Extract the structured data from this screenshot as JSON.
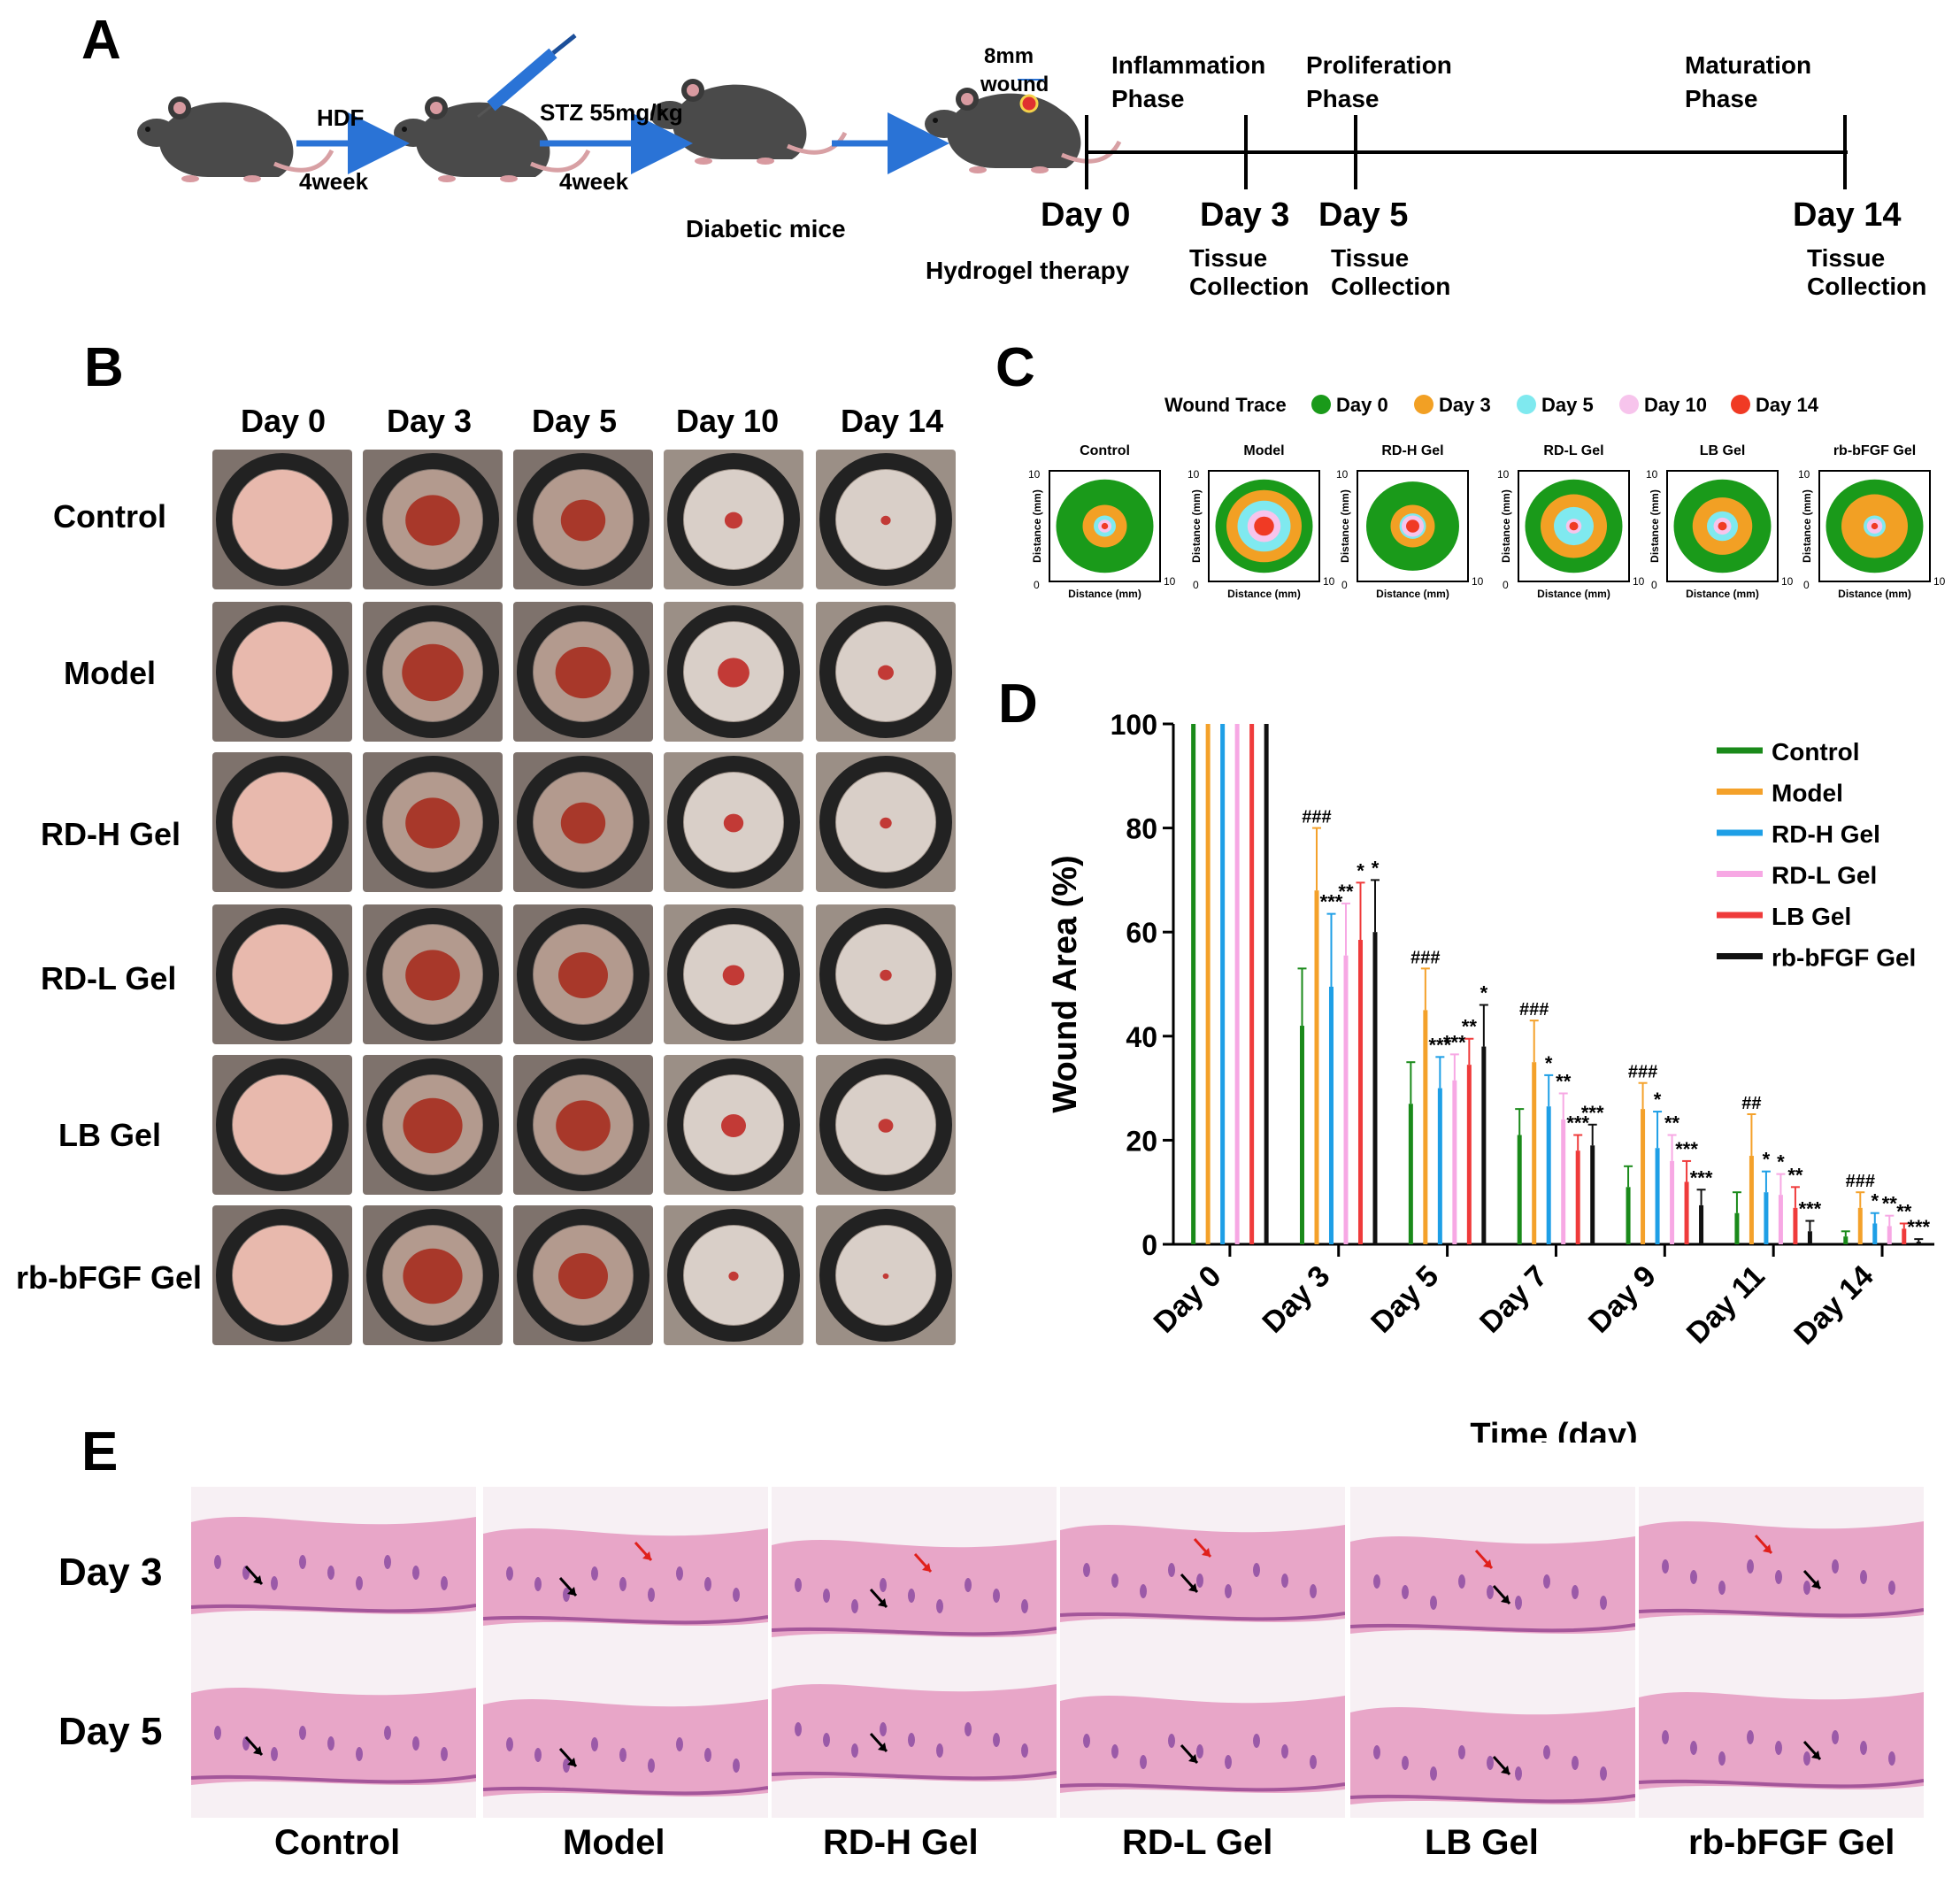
{
  "panel_labels": {
    "a": "A",
    "b": "B",
    "c": "C",
    "d": "D",
    "e": "E"
  },
  "panel_a": {
    "step1_top": "HDF",
    "step1_bottom": "4week",
    "step2_top": "STZ 55mg/kg",
    "step2_bottom": "4week",
    "diabetic": "Diabetic mice",
    "wound_line1": "8mm",
    "wound_line2": "wound",
    "phase_inflam_1": "Inflammation",
    "phase_inflam_2": "Phase",
    "phase_prolif_1": "Proliferation",
    "phase_prolif_2": "Phase",
    "phase_matur_1": "Maturation",
    "phase_matur_2": "Phase",
    "days": [
      "Day 0",
      "Day 3",
      "Day 5",
      "Day 14"
    ],
    "hydrogel": "Hydrogel therapy",
    "tissue_1": "Tissue",
    "tissue_2": "Collection"
  },
  "panel_b": {
    "columns": [
      "Day 0",
      "Day 3",
      "Day 5",
      "Day 10",
      "Day 14"
    ],
    "rows": [
      "Control",
      "Model",
      "RD-H Gel",
      "RD-L Gel",
      "LB Gel",
      "rb-bFGF Gel"
    ]
  },
  "panel_c": {
    "legend_title": "Wound Trace",
    "legend": [
      {
        "label": "Day 0",
        "color": "#1a9a1a"
      },
      {
        "label": "Day 3",
        "color": "#f2a024"
      },
      {
        "label": "Day 5",
        "color": "#7fe9ef"
      },
      {
        "label": "Day 10",
        "color": "#f7c4ec"
      },
      {
        "label": "Day 14",
        "color": "#f03a24"
      }
    ],
    "maps": [
      "Control",
      "Model",
      "RD-H Gel",
      "RD-L Gel",
      "LB Gel",
      "rb-bFGF Gel"
    ],
    "axis_label": "Distance (mm)",
    "tick_0": "0",
    "tick_10": "10"
  },
  "chart_data": {
    "type": "bar",
    "ylabel": "Wound Area (%)",
    "xlabel": "Time (day)",
    "ylim": [
      0,
      100
    ],
    "yticks": [
      "0",
      "20",
      "40",
      "60",
      "80",
      "100"
    ],
    "categories": [
      "Day 0",
      "Day 3",
      "Day 5",
      "Day 7",
      "Day 9",
      "Day 11",
      "Day 14"
    ],
    "series": [
      {
        "name": "Control",
        "color": "#1a8a1a",
        "values": [
          100,
          42,
          27,
          21,
          11,
          6,
          1.5
        ],
        "err": [
          0,
          11,
          8,
          5,
          4,
          4,
          1
        ],
        "stars": [
          "",
          "",
          "",
          "",
          "",
          "",
          ""
        ]
      },
      {
        "name": "Model",
        "color": "#f4a12a",
        "values": [
          100,
          68,
          45,
          35,
          26,
          17,
          7
        ],
        "err": [
          0,
          12,
          8,
          8,
          5,
          8,
          3
        ],
        "stars": [
          "",
          "###",
          "###",
          "###",
          "###",
          "##",
          "###"
        ]
      },
      {
        "name": "RD-H Gel",
        "color": "#1e9fe6",
        "values": [
          100,
          49.5,
          30,
          26.5,
          18.5,
          10,
          4
        ],
        "err": [
          0,
          14,
          6,
          6,
          7,
          4,
          2
        ],
        "stars": [
          "",
          "***",
          "***",
          "*",
          "*",
          "*",
          "*"
        ]
      },
      {
        "name": "RD-L Gel",
        "color": "#f7a8e4",
        "values": [
          100,
          55.5,
          31.5,
          24,
          16,
          9.5,
          3.5
        ],
        "err": [
          0,
          10,
          5,
          5,
          5,
          4,
          2
        ],
        "stars": [
          "",
          "**",
          "***",
          "**",
          "**",
          "*",
          "**"
        ]
      },
      {
        "name": "LB Gel",
        "color": "#ef3b3b",
        "values": [
          100,
          58.5,
          34.5,
          18,
          12,
          7,
          3
        ],
        "err": [
          0,
          11,
          5,
          3,
          4,
          4,
          1
        ],
        "stars": [
          "",
          "*",
          "**",
          "***",
          "***",
          "**",
          "**"
        ]
      },
      {
        "name": "rb-bFGF Gel",
        "color": "#111111",
        "values": [
          100,
          60,
          38,
          19,
          7.5,
          2.5,
          0.5
        ],
        "err": [
          0,
          10,
          8,
          4,
          3,
          2,
          0.5
        ],
        "stars": [
          "",
          "*",
          "*",
          "***",
          "***",
          "***",
          "***"
        ]
      }
    ]
  },
  "panel_e": {
    "rows": [
      "Day 3",
      "Day 5"
    ],
    "columns": [
      "Control",
      "Model",
      "RD-H Gel",
      "RD-L Gel",
      "LB Gel",
      "rb-bFGF Gel"
    ]
  }
}
